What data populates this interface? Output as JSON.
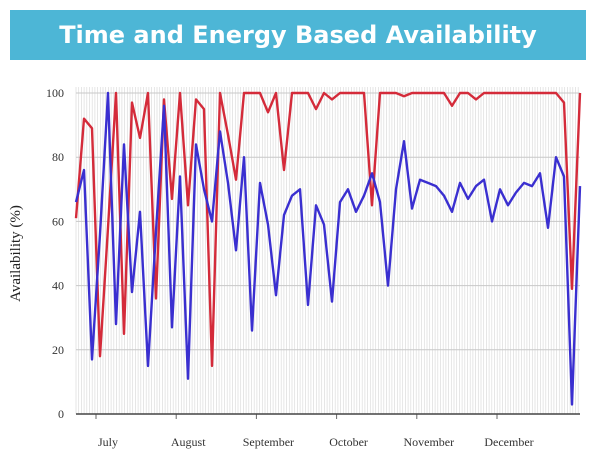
{
  "chart_data": {
    "type": "line",
    "title": "Time and Energy Based Availability",
    "ylabel": "Availability (%)",
    "xlabel": "",
    "ylim": [
      0,
      100
    ],
    "yticks": [
      0,
      20,
      40,
      60,
      80,
      100
    ],
    "xtick_labels": [
      "July",
      "August",
      "September",
      "October",
      "November",
      "December"
    ],
    "x_days": [
      0,
      3,
      6,
      9,
      12,
      15,
      18,
      21,
      24,
      27,
      30,
      33,
      36,
      39,
      42,
      45,
      48,
      51,
      54,
      57,
      60,
      63,
      66,
      69,
      72,
      75,
      78,
      81,
      84,
      87,
      90,
      93,
      96,
      99,
      102,
      105,
      108,
      111,
      114,
      117,
      120,
      123,
      126,
      129,
      132,
      135,
      138,
      141,
      144,
      147,
      150,
      153,
      156,
      159,
      162,
      165,
      168,
      171,
      174,
      177,
      180,
      183,
      186,
      189
    ],
    "grid": true,
    "series": [
      {
        "color": "#d42b3a",
        "values": [
          61,
          92,
          89,
          18,
          58,
          100,
          25,
          97,
          86,
          100,
          36,
          98,
          67,
          100,
          65,
          98,
          95,
          15,
          100,
          87,
          73,
          100,
          100,
          100,
          94,
          100,
          76,
          100,
          100,
          100,
          95,
          100,
          98,
          100,
          100,
          100,
          100,
          65,
          100,
          100,
          100,
          99,
          100,
          100,
          100,
          100,
          100,
          96,
          100,
          100,
          98,
          100,
          100,
          100,
          100,
          100,
          100,
          100,
          100,
          100,
          100,
          97,
          39,
          100
        ]
      },
      {
        "color": "#3a2fd0",
        "values": [
          66,
          76,
          17,
          56,
          100,
          28,
          84,
          38,
          63,
          15,
          57,
          96,
          27,
          74,
          11,
          84,
          70,
          60,
          88,
          72,
          51,
          80,
          26,
          72,
          59,
          37,
          62,
          68,
          70,
          34,
          65,
          59,
          35,
          66,
          70,
          63,
          68,
          75,
          66,
          40,
          70,
          85,
          64,
          73,
          72,
          71,
          68,
          63,
          72,
          67,
          71,
          73,
          60,
          70,
          65,
          69,
          72,
          71,
          75,
          58,
          80,
          74,
          3,
          71
        ]
      }
    ]
  }
}
